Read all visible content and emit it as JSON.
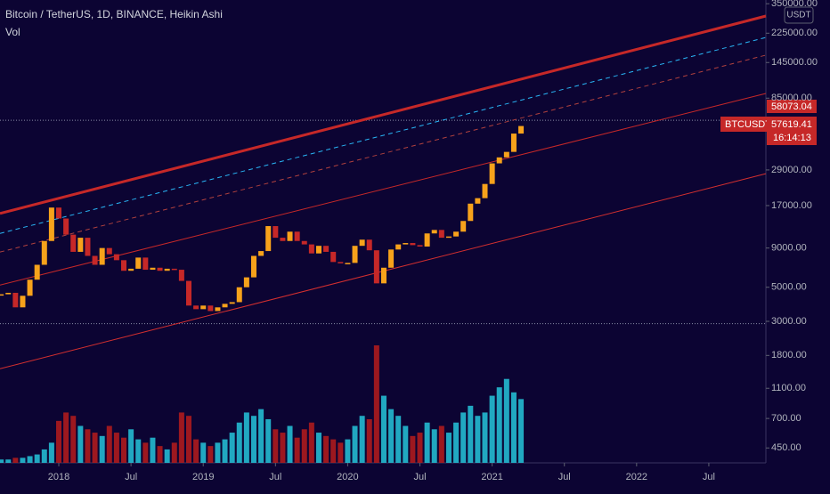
{
  "chart_data": {
    "type": "candlestick",
    "title": "Bitcoin / TetherUS, 1D, BINANCE, Heikin Ashi",
    "subtitle": "Vol",
    "currency": "USDT",
    "log_scale": true,
    "xlim": [
      2017.593,
      2022.895
    ],
    "ylim": [
      360,
      370000
    ],
    "xticks": [
      {
        "value": 2018,
        "label": "2018"
      },
      {
        "value": 2018.5,
        "label": "Jul"
      },
      {
        "value": 2019,
        "label": "2019"
      },
      {
        "value": 2019.5,
        "label": "Jul"
      },
      {
        "value": 2020,
        "label": "2020"
      },
      {
        "value": 2020.5,
        "label": "Jul"
      },
      {
        "value": 2021,
        "label": "2021"
      },
      {
        "value": 2021.5,
        "label": "Jul"
      },
      {
        "value": 2022,
        "label": "2022"
      },
      {
        "value": 2022.5,
        "label": "Jul"
      }
    ],
    "yticks": [
      {
        "value": 350000,
        "label": "350000.00"
      },
      {
        "value": 225000,
        "label": "225000.00"
      },
      {
        "value": 145000,
        "label": "145000.00"
      },
      {
        "value": 85000,
        "label": "85000.00"
      },
      {
        "value": 29000,
        "label": "29000.00"
      },
      {
        "value": 17000,
        "label": "17000.00"
      },
      {
        "value": 9000,
        "label": "9000.00"
      },
      {
        "value": 5000,
        "label": "5000.00"
      },
      {
        "value": 3000,
        "label": "3000.00"
      },
      {
        "value": 1800,
        "label": "1800.00"
      },
      {
        "value": 1100,
        "label": "1100.00"
      },
      {
        "value": 700,
        "label": "700.00"
      },
      {
        "value": 450,
        "label": "450.00"
      }
    ],
    "x": [
      2017.6,
      2017.65,
      2017.7,
      2017.75,
      2017.8,
      2017.85,
      2017.9,
      2017.95,
      2018.0,
      2018.05,
      2018.1,
      2018.15,
      2018.2,
      2018.25,
      2018.3,
      2018.35,
      2018.4,
      2018.45,
      2018.5,
      2018.55,
      2018.6,
      2018.65,
      2018.7,
      2018.75,
      2018.8,
      2018.85,
      2018.9,
      2018.95,
      2019.0,
      2019.05,
      2019.1,
      2019.15,
      2019.2,
      2019.25,
      2019.3,
      2019.35,
      2019.4,
      2019.45,
      2019.5,
      2019.55,
      2019.6,
      2019.65,
      2019.7,
      2019.75,
      2019.8,
      2019.85,
      2019.9,
      2019.95,
      2020.0,
      2020.05,
      2020.1,
      2020.15,
      2020.2,
      2020.25,
      2020.3,
      2020.35,
      2020.4,
      2020.45,
      2020.5,
      2020.55,
      2020.6,
      2020.65,
      2020.7,
      2020.75,
      2020.8,
      2020.85,
      2020.9,
      2020.95,
      2021.0,
      2021.05,
      2021.1,
      2021.15,
      2021.2
    ],
    "series": [
      {
        "name": "BTCUSDT",
        "up_color": "#f7a21b",
        "down_color": "#c62828",
        "values": [
          4500,
          4600,
          3700,
          4400,
          5600,
          7000,
          10000,
          16500,
          14000,
          11000,
          8500,
          10500,
          8000,
          7000,
          9000,
          8200,
          7500,
          6400,
          6600,
          7800,
          6500,
          6700,
          6400,
          6600,
          6500,
          5500,
          3800,
          3600,
          3800,
          3500,
          3700,
          3900,
          4000,
          5000,
          5800,
          8000,
          8600,
          12500,
          10500,
          10000,
          11500,
          10000,
          9500,
          8300,
          9300,
          8500,
          7300,
          7200,
          7200,
          9300,
          10200,
          8700,
          5300,
          6700,
          8800,
          9500,
          9700,
          9400,
          9200,
          11200,
          11800,
          10500,
          10700,
          11500,
          13500,
          17500,
          19000,
          23500,
          32000,
          35000,
          38000,
          50000,
          56000
        ]
      },
      {
        "name": "Vol",
        "up_color": "#26c6da",
        "down_color": "#b71c1c",
        "values": [
          2,
          2,
          3,
          3,
          4,
          5,
          8,
          12,
          25,
          30,
          28,
          22,
          20,
          18,
          16,
          22,
          18,
          15,
          20,
          14,
          12,
          15,
          10,
          8,
          12,
          30,
          28,
          14,
          12,
          10,
          12,
          14,
          18,
          24,
          30,
          28,
          32,
          26,
          20,
          18,
          22,
          15,
          20,
          24,
          18,
          16,
          14,
          12,
          14,
          22,
          28,
          26,
          70,
          40,
          32,
          28,
          22,
          16,
          18,
          24,
          20,
          22,
          18,
          24,
          30,
          34,
          28,
          30,
          40,
          45,
          50,
          42,
          38
        ]
      }
    ],
    "trend_lines": [
      {
        "x": [
          2017.593,
          2022.895
        ],
        "y": [
          15100,
          291000
        ],
        "color": "#c62828",
        "width": 3,
        "dash": false
      },
      {
        "x": [
          2017.593,
          2022.895
        ],
        "y": [
          11200,
          211000
        ],
        "color": "#29b6f6",
        "width": 1,
        "dash": true
      },
      {
        "x": [
          2017.593,
          2022.895
        ],
        "y": [
          8470,
          162000
        ],
        "color": "#b0413e",
        "width": 1,
        "dash": true
      },
      {
        "x": [
          2017.593,
          2022.895
        ],
        "y": [
          5170,
          91200
        ],
        "color": "#c62828",
        "width": 1,
        "dash": false
      },
      {
        "x": [
          2017.593,
          2022.895
        ],
        "y": [
          1475,
          27400
        ],
        "color": "#d32f2f",
        "width": 1,
        "dash": false
      }
    ],
    "hlines": [
      61000,
      2900
    ],
    "last_labels": {
      "high": 58073.04,
      "symbol": "BTCUSDT",
      "price": 57619.41,
      "countdown": "16:14:13"
    }
  }
}
